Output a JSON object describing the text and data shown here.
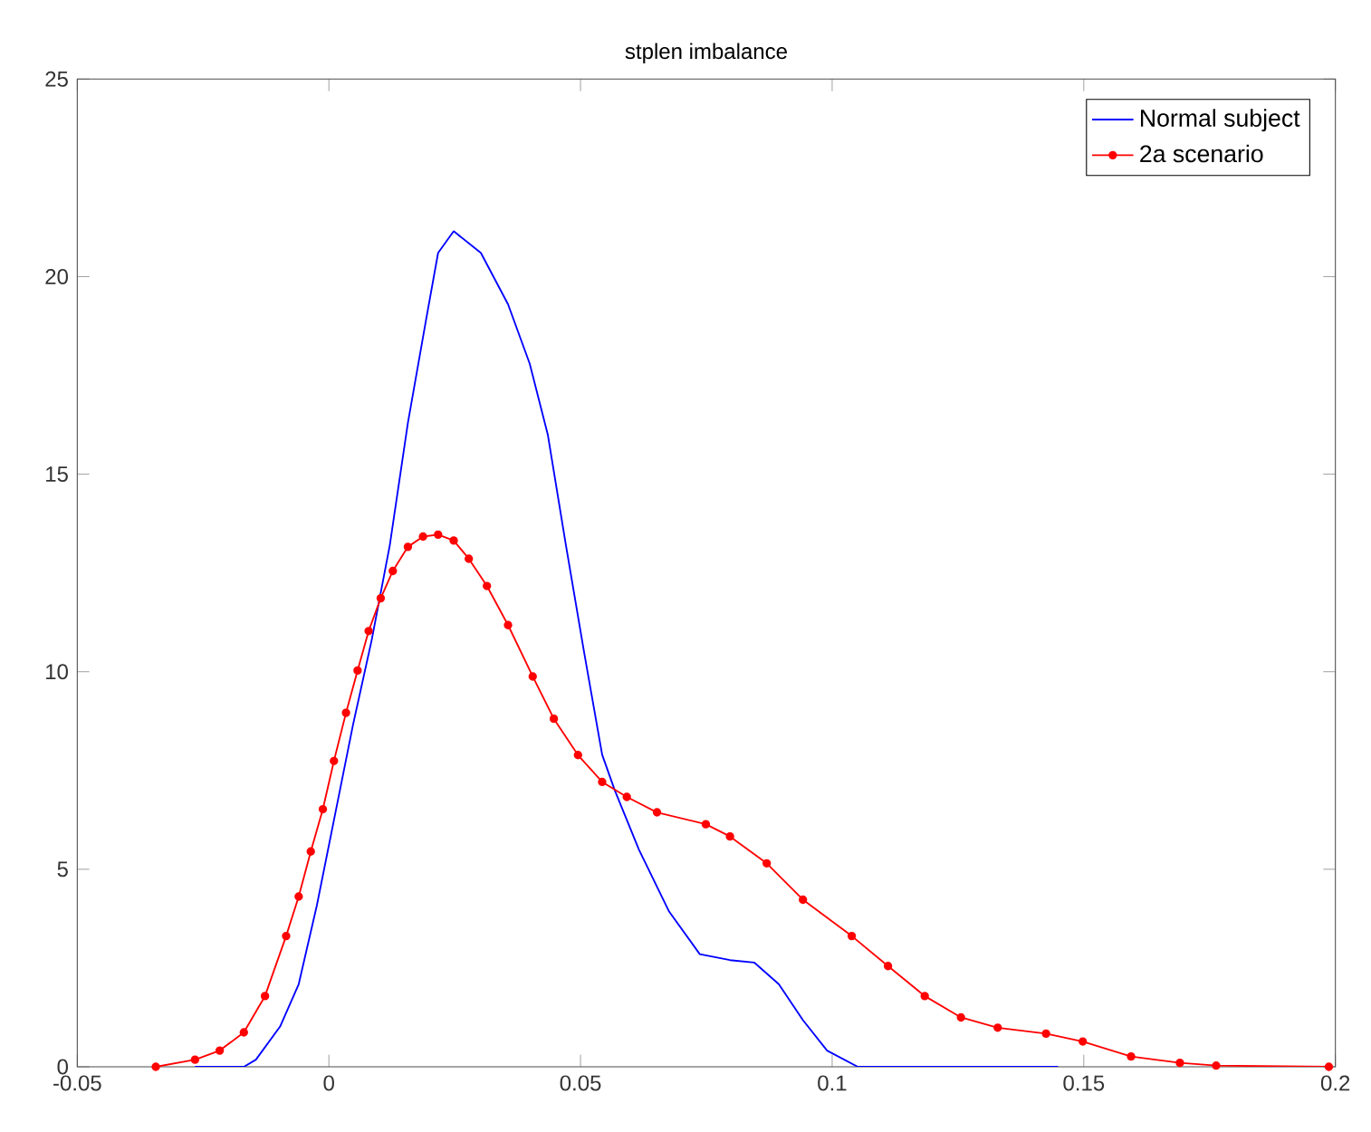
{
  "chart_data": {
    "type": "line",
    "title": "stplen imbalance",
    "xlim": [
      -0.05,
      0.2
    ],
    "ylim": [
      0,
      25
    ],
    "xticks": [
      -0.05,
      0,
      0.05,
      0.1,
      0.15,
      0.2
    ],
    "yticks": [
      0,
      5,
      10,
      15,
      20,
      25
    ],
    "grid": false,
    "legend": "top right",
    "line_style": "solid",
    "series": [
      {
        "name": "Normal subject",
        "color": "#0000ff",
        "marker": "none",
        "x": [
          -0.0266,
          -0.0169,
          -0.0145,
          -0.0097,
          -0.006,
          -0.0024,
          0.0012,
          0.0048,
          0.0085,
          0.0121,
          0.0157,
          0.0193,
          0.0217,
          0.0248,
          0.0302,
          0.0356,
          0.0399,
          0.0435,
          0.0471,
          0.0507,
          0.0543,
          0.0568,
          0.0616,
          0.0676,
          0.0737,
          0.0797,
          0.0845,
          0.0894,
          0.0942,
          0.099,
          0.1051,
          0.1449
        ],
        "values": [
          0,
          0,
          0.18,
          1.02,
          2.09,
          4.08,
          6.37,
          8.66,
          10.8,
          13.2,
          16.3,
          18.9,
          20.6,
          21.15,
          20.6,
          19.3,
          17.8,
          16.0,
          13.2,
          10.5,
          7.9,
          7.0,
          5.5,
          3.93,
          2.85,
          2.7,
          2.64,
          2.09,
          1.18,
          0.41,
          0,
          0
        ]
      },
      {
        "name": "2a scenario",
        "color": "#ff0000",
        "marker": "circle",
        "x": [
          -0.0344,
          -0.0266,
          -0.0217,
          -0.0169,
          -0.0127,
          -0.0085,
          -0.006,
          -0.0036,
          -0.0012,
          0.001,
          0.0034,
          0.0057,
          0.0079,
          0.0103,
          0.0127,
          0.0157,
          0.0187,
          0.0217,
          0.0248,
          0.0278,
          0.0314,
          0.0356,
          0.0405,
          0.0447,
          0.0495,
          0.0543,
          0.0592,
          0.0652,
          0.0749,
          0.0797,
          0.087,
          0.0942,
          0.1039,
          0.1111,
          0.1184,
          0.1256,
          0.1329,
          0.1425,
          0.1498,
          0.1594,
          0.1691,
          0.1763,
          0.1987
        ],
        "values": [
          0,
          0.18,
          0.41,
          0.87,
          1.79,
          3.31,
          4.31,
          5.45,
          6.52,
          7.74,
          8.96,
          10.03,
          11.03,
          11.86,
          12.55,
          13.16,
          13.42,
          13.47,
          13.32,
          12.86,
          12.17,
          11.18,
          9.88,
          8.81,
          7.89,
          7.21,
          6.83,
          6.44,
          6.14,
          5.83,
          5.15,
          4.23,
          3.31,
          2.55,
          1.79,
          1.25,
          0.99,
          0.84,
          0.64,
          0.26,
          0.1,
          0.03,
          0
        ]
      }
    ]
  }
}
